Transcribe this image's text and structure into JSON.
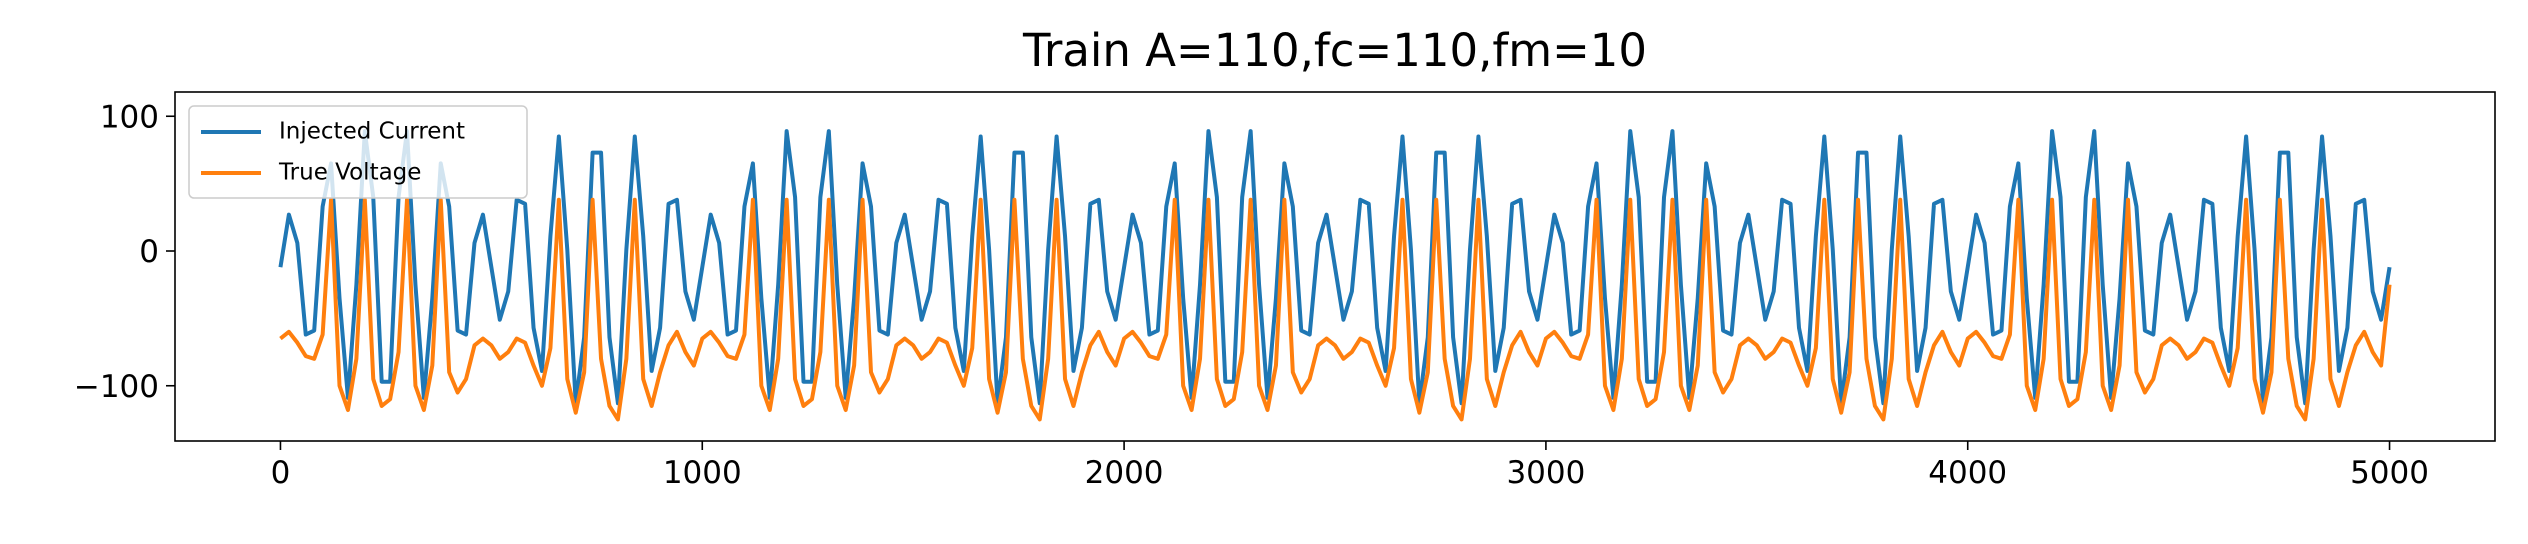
{
  "chart_data": {
    "type": "line",
    "title": "Train A=110,fc=110,fm=10",
    "x": [
      0,
      20,
      40,
      60,
      80,
      100,
      120,
      140,
      160,
      180,
      200,
      220,
      240,
      260,
      280,
      300,
      320,
      340,
      360,
      380,
      400,
      420,
      440,
      460,
      480,
      500,
      520,
      540,
      560,
      580,
      600,
      620,
      640,
      660,
      680,
      700,
      720,
      740,
      760,
      780,
      800,
      820,
      840,
      860,
      880,
      900,
      920,
      940,
      960,
      980,
      1000,
      1020,
      1040,
      1060,
      1080,
      1100,
      1120,
      1140,
      1160,
      1180,
      1200,
      1220,
      1240,
      1260,
      1280,
      1300,
      1320,
      1340,
      1360,
      1380,
      1400,
      1420,
      1440,
      1460,
      1480,
      1500,
      1520,
      1540,
      1560,
      1580,
      1600,
      1620,
      1640,
      1660,
      1680,
      1700,
      1720,
      1740,
      1760,
      1780,
      1800,
      1820,
      1840,
      1860,
      1880,
      1900,
      1920,
      1940,
      1960,
      1980,
      2000,
      2020,
      2040,
      2060,
      2080,
      2100,
      2120,
      2140,
      2160,
      2180,
      2200,
      2220,
      2240,
      2260,
      2280,
      2300,
      2320,
      2340,
      2360,
      2380,
      2400,
      2420,
      2440,
      2460,
      2480,
      2500,
      2520,
      2540,
      2560,
      2580,
      2600,
      2620,
      2640,
      2660,
      2680,
      2700,
      2720,
      2740,
      2760,
      2780,
      2800,
      2820,
      2840,
      2860,
      2880,
      2900,
      2920,
      2940,
      2960,
      2980,
      3000,
      3020,
      3040,
      3060,
      3080,
      3100,
      3120,
      3140,
      3160,
      3180,
      3200,
      3220,
      3240,
      3260,
      3280,
      3300,
      3320,
      3340,
      3360,
      3380,
      3400,
      3420,
      3440,
      3460,
      3480,
      3500,
      3520,
      3540,
      3560,
      3580,
      3600,
      3620,
      3640,
      3660,
      3680,
      3700,
      3720,
      3740,
      3760,
      3780,
      3800,
      3820,
      3840,
      3860,
      3880,
      3900,
      3920,
      3940,
      3960,
      3980,
      4000,
      4020,
      4040,
      4060,
      4080,
      4100,
      4120,
      4140,
      4160,
      4180,
      4200,
      4220,
      4240,
      4260,
      4280,
      4300,
      4320,
      4340,
      4360,
      4380,
      4400,
      4420,
      4440,
      4460,
      4480,
      4500,
      4520,
      4540,
      4560,
      4580,
      4600,
      4620,
      4640,
      4660,
      4680,
      4700,
      4720,
      4740,
      4760,
      4780,
      4800,
      4820,
      4840,
      4860,
      4880,
      4900,
      4920,
      4940,
      4960,
      4980,
      5000
    ],
    "series": [
      {
        "name": "Injected Current",
        "color": "#1f77b4",
        "values": [
          -12,
          27,
          6,
          -62,
          -59,
          33,
          65,
          -35,
          -109,
          -25,
          89,
          40,
          -97,
          -97,
          40,
          89,
          -25,
          -109,
          -35,
          65,
          33,
          -59,
          -62,
          6,
          27,
          -12,
          -51,
          -30,
          38,
          35,
          -57,
          -89,
          11,
          85,
          1,
          -113,
          -64,
          73,
          73,
          -64,
          -113,
          1,
          85,
          11,
          -89,
          -57,
          35,
          38,
          -30,
          -51,
          -12,
          27,
          6,
          -62,
          -59,
          33,
          65,
          -35,
          -109,
          -25,
          89,
          40,
          -97,
          -97,
          40,
          89,
          -25,
          -109,
          -35,
          65,
          33,
          -59,
          -62,
          6,
          27,
          -12,
          -51,
          -30,
          38,
          35,
          -57,
          -89,
          11,
          85,
          1,
          -113,
          -64,
          73,
          73,
          -64,
          -113,
          1,
          85,
          11,
          -89,
          -57,
          35,
          38,
          -30,
          -51,
          -12,
          27,
          6,
          -62,
          -59,
          33,
          65,
          -35,
          -109,
          -25,
          89,
          40,
          -97,
          -97,
          40,
          89,
          -25,
          -109,
          -35,
          65,
          33,
          -59,
          -62,
          6,
          27,
          -12,
          -51,
          -30,
          38,
          35,
          -57,
          -89,
          11,
          85,
          1,
          -113,
          -64,
          73,
          73,
          -64,
          -113,
          1,
          85,
          11,
          -89,
          -57,
          35,
          38,
          -30,
          -51,
          -12,
          27,
          6,
          -62,
          -59,
          33,
          65,
          -35,
          -109,
          -25,
          89,
          40,
          -97,
          -97,
          40,
          89,
          -25,
          -109,
          -35,
          65,
          33,
          -59,
          -62,
          6,
          27,
          -12,
          -51,
          -30,
          38,
          35,
          -57,
          -89,
          11,
          85,
          1,
          -113,
          -64,
          73,
          73,
          -64,
          -113,
          1,
          85,
          11,
          -89,
          -57,
          35,
          38,
          -30,
          -51,
          -12,
          27,
          6,
          -62,
          -59,
          33,
          65,
          -35,
          -109,
          -25,
          89,
          40,
          -97,
          -97,
          40,
          89,
          -25,
          -109,
          -35,
          65,
          33,
          -59,
          -62,
          6,
          27,
          -12,
          -51,
          -30,
          38,
          35,
          -57,
          -89,
          11,
          85,
          1,
          -113,
          -64,
          73,
          73,
          -64,
          -113,
          1,
          85,
          11,
          -89,
          -57,
          35,
          38,
          -30,
          -51,
          -12
        ]
      },
      {
        "name": "True Voltage",
        "color": "#ff7f0e",
        "values": [
          -65,
          -60,
          -68,
          -78,
          -80,
          -62,
          38,
          -100,
          -118,
          -80,
          38,
          -95,
          -115,
          -110,
          -75,
          38,
          -100,
          -118,
          -85,
          38,
          -90,
          -105,
          -95,
          -70,
          -65,
          -70,
          -80,
          -75,
          -65,
          -68,
          -85,
          -100,
          -72,
          38,
          -95,
          -120,
          -90,
          38,
          -80,
          -115,
          -125,
          -80,
          38,
          -95,
          -115,
          -90,
          -70,
          -60,
          -75,
          -85,
          -65,
          -60,
          -68,
          -78,
          -80,
          -62,
          38,
          -100,
          -118,
          -80,
          38,
          -95,
          -115,
          -110,
          -75,
          38,
          -100,
          -118,
          -85,
          38,
          -90,
          -105,
          -95,
          -70,
          -65,
          -70,
          -80,
          -75,
          -65,
          -68,
          -85,
          -100,
          -72,
          38,
          -95,
          -120,
          -90,
          38,
          -80,
          -115,
          -125,
          -80,
          38,
          -95,
          -115,
          -90,
          -70,
          -60,
          -75,
          -85,
          -65,
          -60,
          -68,
          -78,
          -80,
          -62,
          38,
          -100,
          -118,
          -80,
          38,
          -95,
          -115,
          -110,
          -75,
          38,
          -100,
          -118,
          -85,
          38,
          -90,
          -105,
          -95,
          -70,
          -65,
          -70,
          -80,
          -75,
          -65,
          -68,
          -85,
          -100,
          -72,
          38,
          -95,
          -120,
          -90,
          38,
          -80,
          -115,
          -125,
          -80,
          38,
          -95,
          -115,
          -90,
          -70,
          -60,
          -75,
          -85,
          -65,
          -60,
          -68,
          -78,
          -80,
          -62,
          38,
          -100,
          -118,
          -80,
          38,
          -95,
          -115,
          -110,
          -75,
          38,
          -100,
          -118,
          -85,
          38,
          -90,
          -105,
          -95,
          -70,
          -65,
          -70,
          -80,
          -75,
          -65,
          -68,
          -85,
          -100,
          -72,
          38,
          -95,
          -120,
          -90,
          38,
          -80,
          -115,
          -125,
          -80,
          38,
          -95,
          -115,
          -90,
          -70,
          -60,
          -75,
          -85,
          -65,
          -60,
          -68,
          -78,
          -80,
          -62,
          38,
          -100,
          -118,
          -80,
          38,
          -95,
          -115,
          -110,
          -75,
          38,
          -100,
          -118,
          -85,
          38,
          -90,
          -105,
          -95,
          -70,
          -65,
          -70,
          -80,
          -75,
          -65,
          -68,
          -85,
          -100,
          -72,
          38,
          -95,
          -120,
          -90,
          38,
          -80,
          -115,
          -125,
          -80,
          38,
          -95,
          -115,
          -90,
          -70,
          -60,
          -75,
          -85,
          -25
        ]
      }
    ],
    "xlim": [
      -250,
      5250
    ],
    "xticks": [
      0,
      1000,
      2000,
      3000,
      4000,
      5000
    ],
    "ylim": [
      -141,
      118
    ],
    "yticks": [
      {
        "value": -100,
        "label": "−100"
      },
      0,
      100
    ],
    "grid": false,
    "legend": "upper left"
  }
}
